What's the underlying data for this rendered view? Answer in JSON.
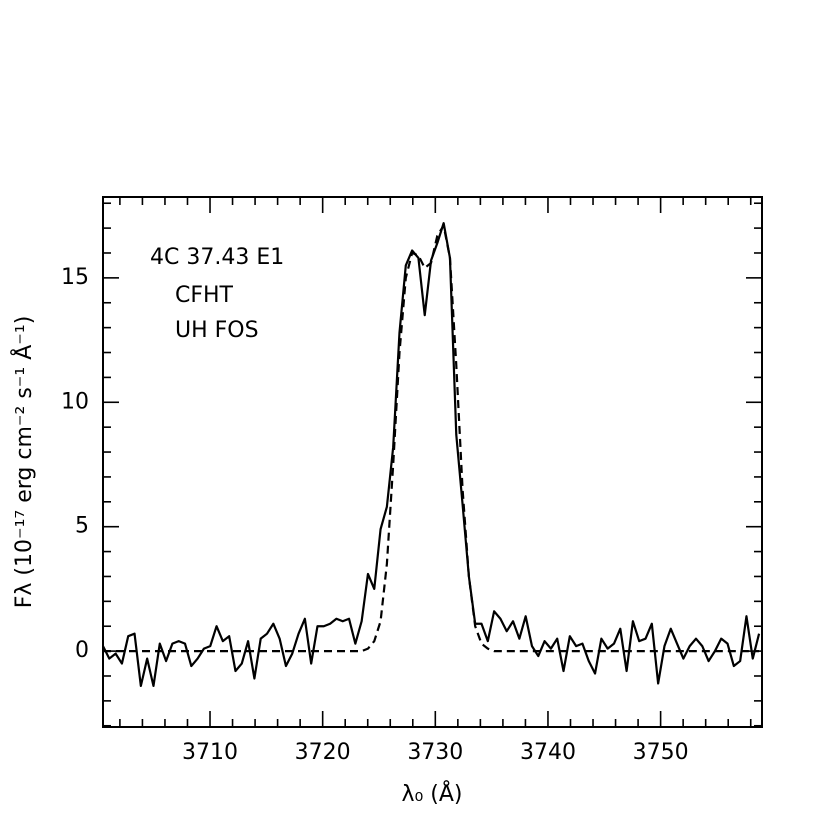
{
  "chart_data": {
    "type": "line",
    "annotations": [
      "4C 37.43 E1",
      "CFHT",
      "UH FOS"
    ],
    "xlabel": "λ₀ (Å)",
    "ylabel": "Fλ (10⁻¹⁷ erg cm⁻² s⁻¹ Å⁻¹)",
    "xlim": [
      3700.5,
      3759.0
    ],
    "ylim": [
      -3.05,
      18.25
    ],
    "xticks": [
      3710,
      3720,
      3730,
      3740,
      3750
    ],
    "yticks": [
      0,
      5,
      10,
      15
    ],
    "xticks_minor": [
      3702,
      3704,
      3706,
      3708,
      3712,
      3714,
      3716,
      3718,
      3722,
      3724,
      3726,
      3728,
      3732,
      3734,
      3736,
      3738,
      3742,
      3744,
      3746,
      3748,
      3752,
      3754,
      3756,
      3758
    ],
    "yticks_minor": [
      -3,
      -2,
      -1,
      1,
      2,
      3,
      4,
      6,
      7,
      8,
      9,
      11,
      12,
      13,
      14,
      16,
      17,
      18
    ],
    "x": [
      3700.5,
      3701.06,
      3701.62,
      3702.18,
      3702.74,
      3703.3,
      3703.86,
      3704.42,
      3704.98,
      3705.54,
      3706.1,
      3706.66,
      3707.22,
      3707.78,
      3708.34,
      3708.9,
      3709.46,
      3710.02,
      3710.58,
      3711.14,
      3711.7,
      3712.26,
      3712.82,
      3713.38,
      3713.94,
      3714.5,
      3715.06,
      3715.62,
      3716.18,
      3716.74,
      3717.3,
      3717.86,
      3718.42,
      3718.98,
      3719.54,
      3720.1,
      3720.66,
      3721.22,
      3721.78,
      3722.34,
      3722.9,
      3723.46,
      3724.02,
      3724.58,
      3725.14,
      3725.7,
      3726.26,
      3726.82,
      3727.38,
      3727.94,
      3728.5,
      3729.06,
      3729.62,
      3730.18,
      3730.74,
      3731.3,
      3731.86,
      3732.42,
      3732.98,
      3733.54,
      3734.1,
      3734.66,
      3735.22,
      3735.78,
      3736.34,
      3736.9,
      3737.46,
      3738.02,
      3738.58,
      3739.14,
      3739.7,
      3740.26,
      3740.82,
      3741.38,
      3741.94,
      3742.5,
      3743.06,
      3743.62,
      3744.18,
      3744.74,
      3745.3,
      3745.86,
      3746.42,
      3746.98,
      3747.54,
      3748.1,
      3748.66,
      3749.22,
      3749.78,
      3750.34,
      3750.9,
      3751.46,
      3752.02,
      3752.58,
      3753.14,
      3753.7,
      3754.26,
      3754.82,
      3755.38,
      3755.94,
      3756.5,
      3757.06,
      3757.62,
      3758.18,
      3758.74
    ],
    "series": [
      {
        "color": "#000000",
        "style": "solid",
        "values": [
          0.2,
          -0.3,
          -0.1,
          -0.5,
          0.6,
          0.7,
          -1.4,
          -0.3,
          -1.4,
          0.3,
          -0.4,
          0.3,
          0.4,
          0.3,
          -0.6,
          -0.3,
          0.1,
          0.2,
          1.0,
          0.4,
          0.6,
          -0.8,
          -0.5,
          0.4,
          -1.1,
          0.5,
          0.7,
          1.1,
          0.5,
          -0.6,
          -0.1,
          0.7,
          1.3,
          -0.5,
          1.0,
          1.0,
          1.1,
          1.3,
          1.2,
          1.3,
          0.3,
          1.2,
          3.1,
          2.5,
          4.9,
          5.8,
          8.2,
          12.8,
          15.5,
          16.1,
          15.8,
          13.5,
          15.7,
          16.4,
          17.2,
          15.8,
          8.7,
          5.9,
          3.0,
          1.1,
          1.1,
          0.4,
          1.6,
          1.3,
          0.8,
          1.2,
          0.5,
          1.4,
          0.2,
          -0.2,
          0.4,
          0.1,
          0.5,
          -0.8,
          0.6,
          0.2,
          0.3,
          -0.4,
          -0.9,
          0.5,
          0.1,
          0.3,
          0.9,
          -0.8,
          1.2,
          0.4,
          0.5,
          1.1,
          -1.3,
          0.2,
          0.9,
          0.3,
          -0.3,
          0.2,
          0.5,
          0.2,
          -0.4,
          0,
          0.5,
          0.3,
          -0.6,
          -0.4,
          1.4,
          -0.3,
          0.7
        ]
      },
      {
        "color": "#000000",
        "style": "dashed",
        "values": [
          0,
          0,
          0,
          0,
          0,
          0,
          0,
          0,
          0,
          0,
          0,
          0,
          0,
          0,
          0,
          0,
          0,
          0,
          0,
          0,
          0,
          0,
          0,
          0,
          0,
          0,
          0,
          0,
          0,
          0,
          0,
          0,
          0,
          0,
          0,
          0,
          0,
          0,
          0,
          0,
          0,
          0,
          0.1,
          0.4,
          1.2,
          3.5,
          7.5,
          12.0,
          15.0,
          16.0,
          15.9,
          15.4,
          15.6,
          16.7,
          17.1,
          15.8,
          11.5,
          6.5,
          3.0,
          1.0,
          0.3,
          0.1,
          0,
          0,
          0,
          0,
          0,
          0,
          0,
          0,
          0,
          0,
          0,
          0,
          0,
          0,
          0,
          0,
          0,
          0,
          0,
          0,
          0,
          0,
          0,
          0,
          0,
          0,
          0,
          0,
          0,
          0,
          0,
          0,
          0,
          0,
          0,
          0,
          0,
          0,
          0,
          0,
          0,
          0,
          0
        ]
      }
    ]
  }
}
